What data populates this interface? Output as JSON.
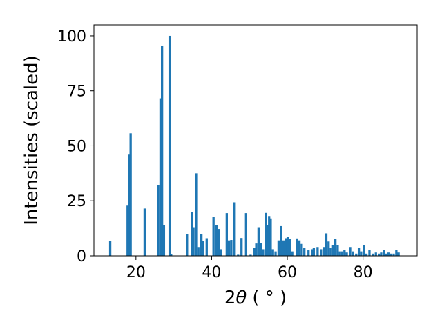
{
  "chart_data": {
    "type": "bar",
    "xlabel_prefix": "2",
    "xlabel_symbol": "θ",
    "xlabel_unit": "( ° )",
    "ylabel": "Intensities (scaled)",
    "xlim": [
      8.9,
      94.3
    ],
    "ylim": [
      0,
      105
    ],
    "xticks": [
      20,
      40,
      60,
      80
    ],
    "yticks": [
      0,
      25,
      50,
      75,
      100
    ],
    "grid": false,
    "legend": "none",
    "bar_color": "#1f77b4",
    "bar_width": 0.6,
    "points": [
      [
        13.2,
        6.8
      ],
      [
        17.8,
        22.8
      ],
      [
        18.3,
        46.0
      ],
      [
        18.6,
        55.7
      ],
      [
        22.3,
        21.5
      ],
      [
        25.9,
        32.2
      ],
      [
        26.5,
        71.6
      ],
      [
        26.9,
        95.6
      ],
      [
        27.4,
        14.0
      ],
      [
        28.9,
        100.0
      ],
      [
        29.3,
        0.8
      ],
      [
        33.5,
        10.0
      ],
      [
        34.8,
        20.0
      ],
      [
        35.2,
        13.0
      ],
      [
        35.9,
        37.5
      ],
      [
        36.5,
        4.0
      ],
      [
        37.3,
        9.8
      ],
      [
        37.8,
        6.7
      ],
      [
        38.7,
        8.0
      ],
      [
        40.5,
        17.7
      ],
      [
        41.3,
        14.0
      ],
      [
        41.9,
        12.2
      ],
      [
        42.4,
        3.0
      ],
      [
        44.0,
        19.4
      ],
      [
        44.6,
        7.0
      ],
      [
        45.2,
        7.2
      ],
      [
        45.9,
        24.3
      ],
      [
        47.0,
        0.5
      ],
      [
        47.9,
        8.1
      ],
      [
        49.1,
        19.4
      ],
      [
        50.3,
        0.5
      ],
      [
        51.3,
        3.5
      ],
      [
        51.8,
        5.6
      ],
      [
        52.4,
        13.0
      ],
      [
        53.0,
        5.7
      ],
      [
        53.6,
        3.0
      ],
      [
        54.3,
        19.5
      ],
      [
        54.7,
        14.0
      ],
      [
        55.2,
        18.1
      ],
      [
        55.6,
        17.0
      ],
      [
        56.2,
        3.0
      ],
      [
        56.9,
        2.0
      ],
      [
        57.7,
        7.0
      ],
      [
        58.3,
        13.5
      ],
      [
        59.0,
        7.0
      ],
      [
        59.6,
        8.0
      ],
      [
        60.1,
        8.6
      ],
      [
        60.7,
        7.7
      ],
      [
        61.3,
        2.0
      ],
      [
        62.6,
        7.9
      ],
      [
        63.2,
        7.0
      ],
      [
        63.8,
        5.4
      ],
      [
        64.5,
        3.5
      ],
      [
        65.6,
        2.5
      ],
      [
        66.5,
        3.0
      ],
      [
        67.0,
        3.5
      ],
      [
        68.0,
        4.0
      ],
      [
        68.9,
        3.0
      ],
      [
        69.6,
        4.0
      ],
      [
        70.3,
        10.2
      ],
      [
        70.9,
        6.5
      ],
      [
        71.5,
        3.5
      ],
      [
        72.1,
        5.0
      ],
      [
        72.7,
        7.7
      ],
      [
        73.3,
        5.0
      ],
      [
        73.9,
        2.0
      ],
      [
        74.5,
        2.0
      ],
      [
        75.1,
        2.5
      ],
      [
        75.7,
        1.5
      ],
      [
        76.6,
        4.0
      ],
      [
        77.3,
        2.0
      ],
      [
        78.2,
        1.0
      ],
      [
        78.9,
        3.5
      ],
      [
        79.5,
        2.0
      ],
      [
        80.2,
        5.0
      ],
      [
        80.9,
        1.0
      ],
      [
        81.7,
        2.5
      ],
      [
        82.7,
        1.0
      ],
      [
        83.4,
        1.5
      ],
      [
        84.2,
        1.0
      ],
      [
        84.8,
        1.5
      ],
      [
        85.5,
        2.5
      ],
      [
        86.1,
        1.0
      ],
      [
        86.7,
        1.5
      ],
      [
        87.4,
        1.0
      ],
      [
        88.1,
        1.0
      ],
      [
        88.8,
        2.6
      ],
      [
        89.4,
        1.5
      ]
    ]
  }
}
